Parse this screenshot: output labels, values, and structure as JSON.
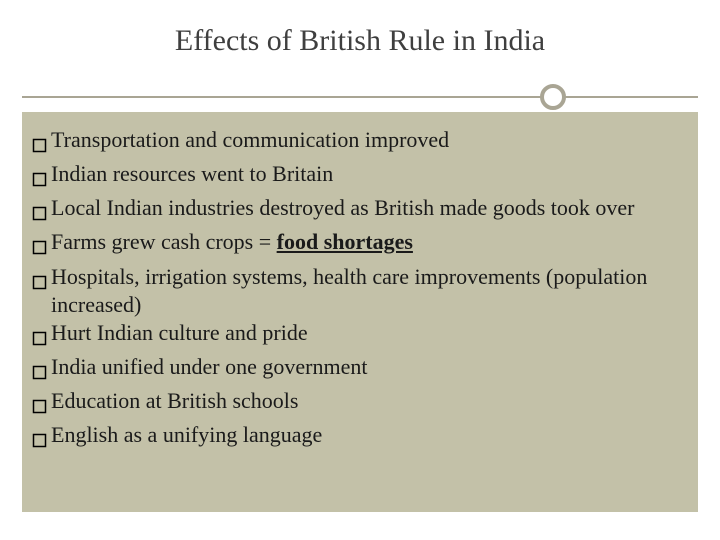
{
  "slide": {
    "title": "Effects of British Rule in India",
    "title_fontsize": 30,
    "title_color": "#3f3f3f",
    "background_color": "#ffffff",
    "panel_color": "#c3c1a8",
    "divider_color": "#a9a594",
    "divider_circle_border": "#a9a594",
    "bullet_marker_stroke": "#000000",
    "bullet_fontsize": 22,
    "bullet_text_color": "#1a1a1a",
    "bullets": [
      {
        "segments": [
          {
            "text": "Transportation and communication improved",
            "style": "normal"
          }
        ]
      },
      {
        "segments": [
          {
            "text": "Indian resources went to Britain",
            "style": "normal"
          }
        ]
      },
      {
        "segments": [
          {
            "text": "Local Indian industries destroyed as British made goods took over",
            "style": "normal"
          }
        ]
      },
      {
        "segments": [
          {
            "text": "Farms grew cash crops = ",
            "style": "normal"
          },
          {
            "text": "food shortages",
            "style": "bold-underline"
          }
        ]
      },
      {
        "segments": [
          {
            "text": "Hospitals, irrigation systems, health care improvements (population increased)",
            "style": "normal"
          }
        ]
      },
      {
        "segments": [
          {
            "text": "Hurt Indian culture and pride",
            "style": "normal"
          }
        ]
      },
      {
        "segments": [
          {
            "text": "India unified under one government",
            "style": "normal"
          }
        ]
      },
      {
        "segments": [
          {
            "text": "Education at British schools",
            "style": "normal"
          }
        ]
      },
      {
        "segments": [
          {
            "text": "English as a unifying language",
            "style": "normal"
          }
        ]
      }
    ]
  }
}
